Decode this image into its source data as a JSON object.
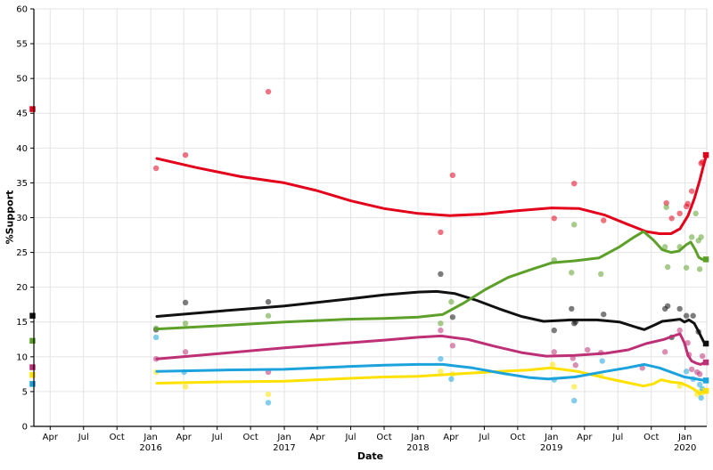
{
  "labels": {
    "x_axis_title": "Date",
    "y_axis_title": "%Support"
  },
  "chart_data": {
    "type": "line",
    "subtype": "opinion-polling: smoothed trend lines, poll scatter dots, election-result squares at both axis ends",
    "title": "",
    "xlabel": "Date",
    "ylabel": "%Support",
    "legend": "none",
    "grid": true,
    "x_axis": {
      "start_year_decimal": 2015.125,
      "end_year_decimal": 2020.168,
      "ticks": [
        {
          "x": 2015.247,
          "month": "Apr"
        },
        {
          "x": 2015.497,
          "month": "Jul"
        },
        {
          "x": 2015.747,
          "month": "Oct"
        },
        {
          "x": 2016.0,
          "month": "Jan",
          "year": "2016"
        },
        {
          "x": 2016.247,
          "month": "Apr"
        },
        {
          "x": 2016.497,
          "month": "Jul"
        },
        {
          "x": 2016.747,
          "month": "Oct"
        },
        {
          "x": 2017.0,
          "month": "Jan",
          "year": "2017"
        },
        {
          "x": 2017.247,
          "month": "Apr"
        },
        {
          "x": 2017.497,
          "month": "Jul"
        },
        {
          "x": 2017.747,
          "month": "Oct"
        },
        {
          "x": 2018.0,
          "month": "Jan",
          "year": "2018"
        },
        {
          "x": 2018.247,
          "month": "Apr"
        },
        {
          "x": 2018.497,
          "month": "Jul"
        },
        {
          "x": 2018.747,
          "month": "Oct"
        },
        {
          "x": 2019.0,
          "month": "Jan",
          "year": "2019"
        },
        {
          "x": 2019.247,
          "month": "Apr"
        },
        {
          "x": 2019.497,
          "month": "Jul"
        },
        {
          "x": 2019.747,
          "month": "Oct"
        },
        {
          "x": 2020.0,
          "month": "Jan",
          "year": "2020"
        }
      ]
    },
    "y_axis": {
      "min": 0,
      "max": 60,
      "tick_step": 5,
      "ticks": [
        0,
        5,
        10,
        15,
        20,
        25,
        30,
        35,
        40,
        45,
        50,
        55,
        60
      ]
    },
    "style": {
      "background": "#ffffff",
      "grid_color": "#e4e4e4",
      "spine_color": "#d8d8d8",
      "axis_color": "#000000",
      "tick_label_color": "#000000",
      "poll_dot_opacity": 0.55,
      "poll_dot_radius": 3.2,
      "trend_width": 3,
      "square_size": 6.5
    },
    "series": [
      {
        "id": "red",
        "color": "#E3001B",
        "start_square": {
          "x": 2015.115,
          "value": 45.6
        },
        "end_square": {
          "x": 2020.156,
          "value": 39.0
        },
        "trend": [
          [
            2016.046,
            38.5
          ],
          [
            2016.339,
            37.2
          ],
          [
            2016.673,
            35.9
          ],
          [
            2017.0,
            35.0
          ],
          [
            2017.24,
            33.9
          ],
          [
            2017.5,
            32.4
          ],
          [
            2017.747,
            31.3
          ],
          [
            2018.001,
            30.6
          ],
          [
            2018.241,
            30.3
          ],
          [
            2018.474,
            30.5
          ],
          [
            2018.741,
            31.0
          ],
          [
            2019.001,
            31.4
          ],
          [
            2019.208,
            31.3
          ],
          [
            2019.395,
            30.4
          ],
          [
            2019.575,
            29.0
          ],
          [
            2019.708,
            28.0
          ],
          [
            2019.808,
            27.7
          ],
          [
            2019.895,
            27.7
          ],
          [
            2019.962,
            28.4
          ],
          [
            2020.022,
            30.3
          ],
          [
            2020.069,
            32.7
          ],
          [
            2020.109,
            35.3
          ],
          [
            2020.136,
            37.3
          ],
          [
            2020.16,
            39.0
          ]
        ],
        "polls": [
          [
            2016.04,
            37.1
          ],
          [
            2016.26,
            39.0
          ],
          [
            2016.88,
            48.1
          ],
          [
            2018.17,
            27.9
          ],
          [
            2018.26,
            36.1
          ],
          [
            2019.02,
            29.9
          ],
          [
            2019.17,
            34.9
          ],
          [
            2019.39,
            29.6
          ],
          [
            2019.86,
            32.1
          ],
          [
            2019.9,
            29.9
          ],
          [
            2019.96,
            30.6
          ],
          [
            2020.01,
            31.6
          ],
          [
            2020.02,
            32.0
          ],
          [
            2020.05,
            33.8
          ],
          [
            2020.12,
            37.8
          ],
          [
            2020.13,
            38.0
          ]
        ]
      },
      {
        "id": "black",
        "color": "#111111",
        "start_square": {
          "x": 2015.115,
          "value": 15.9
        },
        "end_square": {
          "x": 2020.156,
          "value": 11.9
        },
        "trend": [
          [
            2016.046,
            15.8
          ],
          [
            2016.539,
            16.6
          ],
          [
            2017.0,
            17.3
          ],
          [
            2017.474,
            18.3
          ],
          [
            2017.747,
            18.9
          ],
          [
            2018.001,
            19.3
          ],
          [
            2018.141,
            19.4
          ],
          [
            2018.274,
            19.1
          ],
          [
            2018.441,
            18.1
          ],
          [
            2018.608,
            16.9
          ],
          [
            2018.775,
            15.8
          ],
          [
            2018.941,
            15.1
          ],
          [
            2019.142,
            15.3
          ],
          [
            2019.342,
            15.3
          ],
          [
            2019.509,
            15.0
          ],
          [
            2019.642,
            14.2
          ],
          [
            2019.695,
            13.9
          ],
          [
            2019.775,
            14.6
          ],
          [
            2019.829,
            15.1
          ],
          [
            2019.922,
            15.3
          ],
          [
            2019.962,
            15.4
          ],
          [
            2019.995,
            15.0
          ],
          [
            2020.029,
            15.3
          ],
          [
            2020.069,
            14.8
          ],
          [
            2020.102,
            13.6
          ],
          [
            2020.136,
            12.3
          ],
          [
            2020.149,
            11.9
          ]
        ],
        "polls": [
          [
            2016.04,
            13.9
          ],
          [
            2016.26,
            17.8
          ],
          [
            2016.88,
            17.9
          ],
          [
            2018.17,
            21.9
          ],
          [
            2018.26,
            15.7
          ],
          [
            2019.02,
            13.8
          ],
          [
            2019.15,
            16.9
          ],
          [
            2019.17,
            14.8
          ],
          [
            2019.18,
            15.0
          ],
          [
            2019.39,
            16.1
          ],
          [
            2019.85,
            16.9
          ],
          [
            2019.87,
            17.3
          ],
          [
            2019.9,
            12.8
          ],
          [
            2019.96,
            16.9
          ],
          [
            2020.01,
            15.9
          ],
          [
            2020.06,
            15.9
          ],
          [
            2020.1,
            13.6
          ]
        ]
      },
      {
        "id": "green",
        "color": "#5CA029",
        "start_square": {
          "x": 2015.115,
          "value": 12.3
        },
        "end_square": {
          "x": 2020.156,
          "value": 24.0
        },
        "trend": [
          [
            2016.046,
            14.0
          ],
          [
            2016.539,
            14.5
          ],
          [
            2017.0,
            15.0
          ],
          [
            2017.474,
            15.4
          ],
          [
            2017.747,
            15.5
          ],
          [
            2018.001,
            15.7
          ],
          [
            2018.187,
            16.1
          ],
          [
            2018.341,
            17.7
          ],
          [
            2018.508,
            19.7
          ],
          [
            2018.675,
            21.4
          ],
          [
            2018.841,
            22.5
          ],
          [
            2019.001,
            23.5
          ],
          [
            2019.175,
            23.8
          ],
          [
            2019.355,
            24.2
          ],
          [
            2019.509,
            25.8
          ],
          [
            2019.609,
            27.1
          ],
          [
            2019.689,
            28.0
          ],
          [
            2019.762,
            26.8
          ],
          [
            2019.829,
            25.4
          ],
          [
            2019.895,
            25.0
          ],
          [
            2019.955,
            25.2
          ],
          [
            2020.009,
            26.1
          ],
          [
            2020.042,
            26.5
          ],
          [
            2020.076,
            25.4
          ],
          [
            2020.102,
            24.3
          ],
          [
            2020.129,
            24.0
          ],
          [
            2020.149,
            24.0
          ]
        ],
        "polls": [
          [
            2016.04,
            14.1
          ],
          [
            2016.26,
            14.8
          ],
          [
            2016.88,
            15.9
          ],
          [
            2018.17,
            14.8
          ],
          [
            2018.25,
            17.9
          ],
          [
            2019.02,
            23.9
          ],
          [
            2019.15,
            22.1
          ],
          [
            2019.17,
            29.0
          ],
          [
            2019.37,
            21.9
          ],
          [
            2019.85,
            25.8
          ],
          [
            2019.86,
            31.5
          ],
          [
            2019.87,
            22.9
          ],
          [
            2019.96,
            25.8
          ],
          [
            2020.01,
            22.8
          ],
          [
            2020.05,
            27.2
          ],
          [
            2020.08,
            30.6
          ],
          [
            2020.1,
            26.7
          ],
          [
            2020.11,
            22.6
          ],
          [
            2020.12,
            27.2
          ]
        ]
      },
      {
        "id": "magenta",
        "color": "#BE3075",
        "start_square": {
          "x": 2015.115,
          "value": 8.5
        },
        "end_square": {
          "x": 2020.156,
          "value": 9.2
        },
        "trend": [
          [
            2016.046,
            9.7
          ],
          [
            2016.539,
            10.5
          ],
          [
            2017.0,
            11.3
          ],
          [
            2017.474,
            12.0
          ],
          [
            2017.747,
            12.4
          ],
          [
            2018.001,
            12.8
          ],
          [
            2018.174,
            13.0
          ],
          [
            2018.374,
            12.5
          ],
          [
            2018.575,
            11.5
          ],
          [
            2018.775,
            10.6
          ],
          [
            2018.961,
            10.1
          ],
          [
            2019.175,
            10.2
          ],
          [
            2019.408,
            10.5
          ],
          [
            2019.575,
            11.0
          ],
          [
            2019.708,
            11.9
          ],
          [
            2019.842,
            12.5
          ],
          [
            2019.929,
            13.1
          ],
          [
            2019.962,
            13.3
          ],
          [
            2019.995,
            12.0
          ],
          [
            2020.022,
            10.2
          ],
          [
            2020.049,
            9.4
          ],
          [
            2020.082,
            9.1
          ],
          [
            2020.116,
            8.9
          ],
          [
            2020.149,
            9.2
          ]
        ],
        "polls": [
          [
            2016.04,
            9.7
          ],
          [
            2016.26,
            10.7
          ],
          [
            2016.88,
            7.8
          ],
          [
            2018.17,
            13.8
          ],
          [
            2018.26,
            11.6
          ],
          [
            2019.02,
            10.7
          ],
          [
            2019.16,
            9.8
          ],
          [
            2019.18,
            8.8
          ],
          [
            2019.27,
            11.0
          ],
          [
            2019.37,
            10.6
          ],
          [
            2019.68,
            8.4
          ],
          [
            2019.85,
            10.7
          ],
          [
            2019.96,
            13.8
          ],
          [
            2020.02,
            12.0
          ],
          [
            2020.03,
            10.3
          ],
          [
            2020.05,
            8.2
          ],
          [
            2020.09,
            7.8
          ],
          [
            2020.11,
            7.5
          ],
          [
            2020.13,
            10.1
          ]
        ]
      },
      {
        "id": "yellow",
        "color": "#FFE100",
        "start_square": {
          "x": 2015.115,
          "value": 7.4
        },
        "end_square": {
          "x": 2020.156,
          "value": 5.1
        },
        "trend": [
          [
            2016.046,
            6.2
          ],
          [
            2016.539,
            6.4
          ],
          [
            2017.0,
            6.5
          ],
          [
            2017.474,
            6.9
          ],
          [
            2017.747,
            7.1
          ],
          [
            2018.001,
            7.2
          ],
          [
            2018.341,
            7.6
          ],
          [
            2018.608,
            7.9
          ],
          [
            2018.821,
            8.1
          ],
          [
            2018.995,
            8.4
          ],
          [
            2019.195,
            7.9
          ],
          [
            2019.395,
            7.0
          ],
          [
            2019.542,
            6.4
          ],
          [
            2019.689,
            5.8
          ],
          [
            2019.762,
            6.1
          ],
          [
            2019.822,
            6.7
          ],
          [
            2019.889,
            6.4
          ],
          [
            2019.975,
            6.2
          ],
          [
            2020.022,
            5.8
          ],
          [
            2020.062,
            5.4
          ],
          [
            2020.089,
            5.0
          ],
          [
            2020.109,
            4.7
          ],
          [
            2020.136,
            5.0
          ],
          [
            2020.149,
            5.1
          ]
        ],
        "polls": [
          [
            2016.04,
            7.8
          ],
          [
            2016.26,
            5.7
          ],
          [
            2016.88,
            4.6
          ],
          [
            2018.17,
            7.9
          ],
          [
            2018.26,
            7.5
          ],
          [
            2019.01,
            8.9
          ],
          [
            2019.17,
            5.7
          ],
          [
            2019.37,
            7.3
          ],
          [
            2019.96,
            5.8
          ],
          [
            2020.09,
            4.6
          ],
          [
            2020.11,
            5.0
          ],
          [
            2020.13,
            4.8
          ]
        ]
      },
      {
        "id": "blue",
        "color": "#1CA2DC",
        "start_square": {
          "x": 2015.115,
          "value": 6.1
        },
        "end_square": {
          "x": 2020.156,
          "value": 6.6
        },
        "trend": [
          [
            2016.046,
            7.9
          ],
          [
            2016.539,
            8.1
          ],
          [
            2017.0,
            8.2
          ],
          [
            2017.474,
            8.6
          ],
          [
            2017.747,
            8.8
          ],
          [
            2018.001,
            8.9
          ],
          [
            2018.187,
            8.9
          ],
          [
            2018.408,
            8.4
          ],
          [
            2018.641,
            7.6
          ],
          [
            2018.841,
            7.0
          ],
          [
            2018.975,
            6.8
          ],
          [
            2019.175,
            7.1
          ],
          [
            2019.408,
            7.9
          ],
          [
            2019.562,
            8.4
          ],
          [
            2019.695,
            8.9
          ],
          [
            2019.808,
            8.4
          ],
          [
            2019.909,
            7.7
          ],
          [
            2019.995,
            7.1
          ],
          [
            2020.062,
            6.9
          ],
          [
            2020.116,
            6.7
          ],
          [
            2020.149,
            6.6
          ]
        ],
        "polls": [
          [
            2016.04,
            12.8
          ],
          [
            2016.25,
            7.8
          ],
          [
            2016.88,
            3.4
          ],
          [
            2018.17,
            9.7
          ],
          [
            2018.25,
            6.8
          ],
          [
            2019.02,
            6.7
          ],
          [
            2019.17,
            3.7
          ],
          [
            2019.38,
            9.4
          ],
          [
            2020.01,
            7.9
          ],
          [
            2020.06,
            6.8
          ],
          [
            2020.11,
            6.0
          ],
          [
            2020.12,
            4.1
          ],
          [
            2020.13,
            5.4
          ]
        ]
      }
    ]
  }
}
